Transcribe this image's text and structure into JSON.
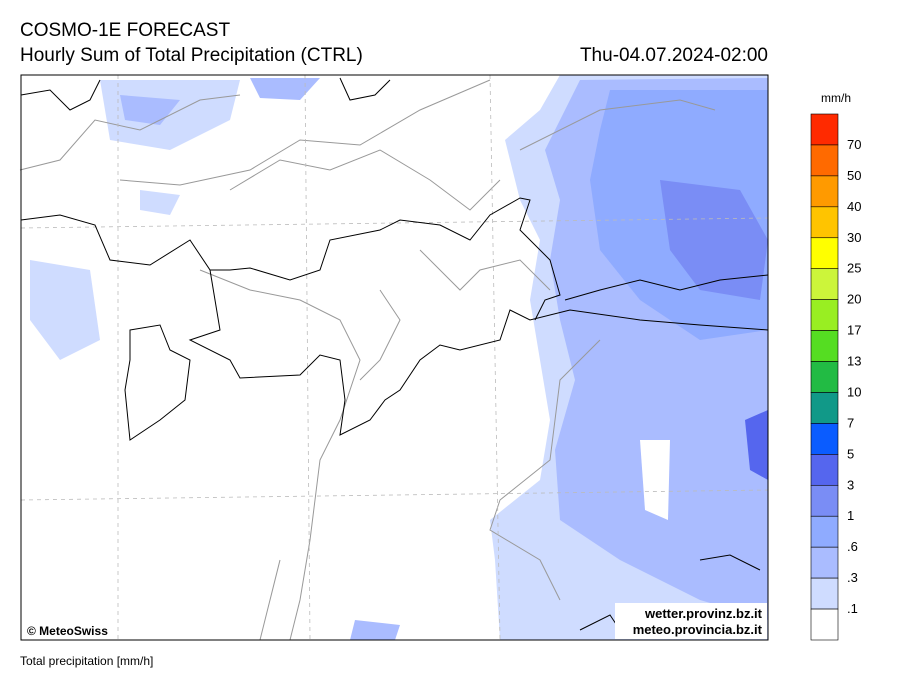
{
  "header": {
    "title": "COSMO-1E FORECAST",
    "subtitle": "Hourly Sum of Total Precipitation (CTRL)",
    "valid_time": "Thu-04.07.2024-02:00"
  },
  "map": {
    "credit": "© MeteoSwiss",
    "links": [
      "wetter.provinz.bz.it",
      "meteo.provincia.bz.it"
    ]
  },
  "legend": {
    "unit": "mm/h",
    "labels": [
      "70",
      "50",
      "40",
      "30",
      "25",
      "20",
      "17",
      "13",
      "10",
      "7",
      "5",
      "3",
      "1",
      ".6",
      ".3",
      ".1"
    ],
    "colors": [
      "#ff2a00",
      "#ff6a00",
      "#ff9a00",
      "#ffc400",
      "#ffff00",
      "#ccf53a",
      "#99ee22",
      "#55dd22",
      "#22bb44",
      "#119988",
      "#0a5cff",
      "#5566ee",
      "#7a8df5",
      "#8fabff",
      "#aabcff",
      "#cfdcff",
      "#ffffff"
    ]
  },
  "footer": {
    "note": "Total precipitation [mm/h]"
  }
}
